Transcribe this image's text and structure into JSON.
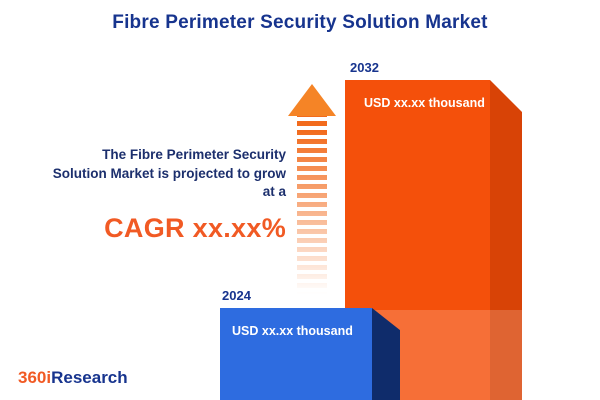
{
  "title": "Fibre Perimeter Security Solution Market",
  "promo": {
    "line1": "The Fibre Perimeter Security",
    "line2": "Solution Market is projected to grow",
    "line3": "at a",
    "cagr": "CAGR xx.xx%"
  },
  "chart_data": {
    "type": "bar",
    "title": "Fibre Perimeter Security Solution Market",
    "categories": [
      "2024",
      "2032"
    ],
    "value_labels": [
      "USD xx.xx thousand",
      "USD xx.xx thousand"
    ],
    "values_masked": true,
    "annotation": "The Fibre Perimeter Security Solution Market is projected to grow at a CAGR xx.xx%",
    "bars": [
      {
        "year": "2024",
        "label": "USD xx.xx thousand",
        "color": "#2e6ce0",
        "side_color": "#0f2c6b"
      },
      {
        "year": "2032",
        "label": "USD xx.xx thousand",
        "color": "#f4500b",
        "side_color": "#d84306"
      }
    ],
    "legend": "none",
    "grid": false
  },
  "colors": {
    "title_navy": "#17348e",
    "text_navy": "#1c2f6d",
    "accent_orange": "#f15a24",
    "bar_blue": "#2e6ce0",
    "bar_blue_side": "#0f2c6b",
    "bar_orange": "#f4500b",
    "bar_orange_side": "#d84306"
  },
  "logo": {
    "part_orange": "360i",
    "part_blue": "Research"
  }
}
